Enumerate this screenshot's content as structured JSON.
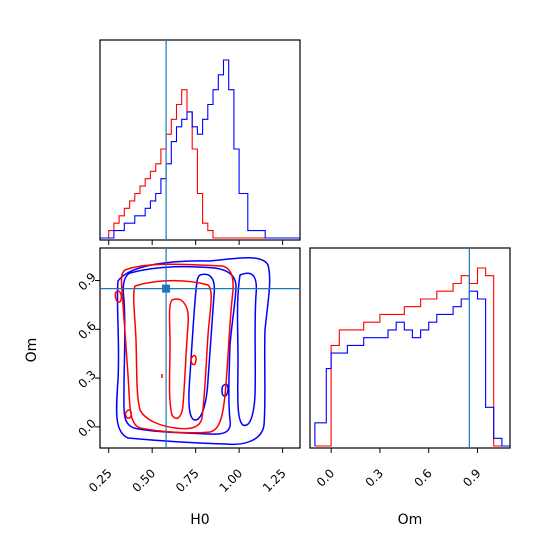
{
  "chart_data": [
    {
      "type": "histogram",
      "panel": "H0 marginal",
      "x_ticks": [
        0.25,
        0.5,
        0.75,
        1.0,
        1.25
      ],
      "xlim": [
        0.2,
        1.35
      ],
      "truth_x": 0.58,
      "bins": [
        0.2,
        0.25,
        0.28,
        0.31,
        0.34,
        0.37,
        0.4,
        0.43,
        0.46,
        0.49,
        0.52,
        0.55,
        0.58,
        0.61,
        0.64,
        0.67,
        0.7,
        0.73,
        0.76,
        0.79,
        0.82,
        0.85,
        0.88,
        0.91,
        0.94,
        0.97,
        1.0,
        1.05,
        1.15,
        1.35
      ],
      "series": [
        {
          "color": "#ff0000",
          "values": [
            0,
            1,
            2,
            3,
            4,
            5,
            6,
            7,
            8,
            9,
            10,
            12,
            14,
            16,
            18,
            20,
            17,
            12,
            6,
            2,
            1,
            0,
            0,
            0,
            0,
            0,
            0,
            0,
            0
          ]
        },
        {
          "color": "#0000ff",
          "values": [
            0,
            0,
            1,
            1,
            2,
            2,
            3,
            3,
            4,
            5,
            6,
            8,
            10,
            13,
            15,
            16,
            17,
            15,
            14,
            16,
            18,
            20,
            22,
            24,
            20,
            12,
            6,
            1,
            0
          ]
        }
      ]
    },
    {
      "type": "contour",
      "panel": "H0 vs Om",
      "xlabel": "H0",
      "ylabel": "Om",
      "x_ticks": [
        0.25,
        0.5,
        0.75,
        1.0,
        1.25
      ],
      "y_ticks": [
        0.0,
        0.3,
        0.6,
        0.9
      ],
      "xlim": [
        0.2,
        1.35
      ],
      "ylim": [
        -0.13,
        1.1
      ],
      "truth_point": [
        0.58,
        0.85
      ]
    },
    {
      "type": "histogram",
      "panel": "Om marginal",
      "xlabel": "Om",
      "x_ticks": [
        0.0,
        0.3,
        0.6,
        0.9
      ],
      "xlim": [
        -0.13,
        1.1
      ],
      "truth_x": 0.85,
      "bins": [
        -0.1,
        -0.03,
        0.0,
        0.05,
        0.1,
        0.15,
        0.2,
        0.25,
        0.3,
        0.35,
        0.4,
        0.45,
        0.5,
        0.55,
        0.6,
        0.65,
        0.7,
        0.75,
        0.8,
        0.85,
        0.9,
        0.95,
        1.0,
        1.05,
        1.1
      ],
      "series": [
        {
          "color": "#ff0000",
          "values": [
            0,
            0,
            13,
            15,
            15,
            15,
            16,
            16,
            17,
            17,
            17,
            18,
            18,
            19,
            19,
            20,
            20,
            21,
            22,
            21,
            23,
            22,
            0,
            0
          ]
        },
        {
          "color": "#0000ff",
          "values": [
            3,
            10,
            12,
            12,
            13,
            13,
            14,
            14,
            14,
            15,
            16,
            15,
            14,
            15,
            16,
            17,
            17,
            18,
            19,
            20,
            19,
            5,
            1,
            0
          ]
        }
      ]
    }
  ]
}
